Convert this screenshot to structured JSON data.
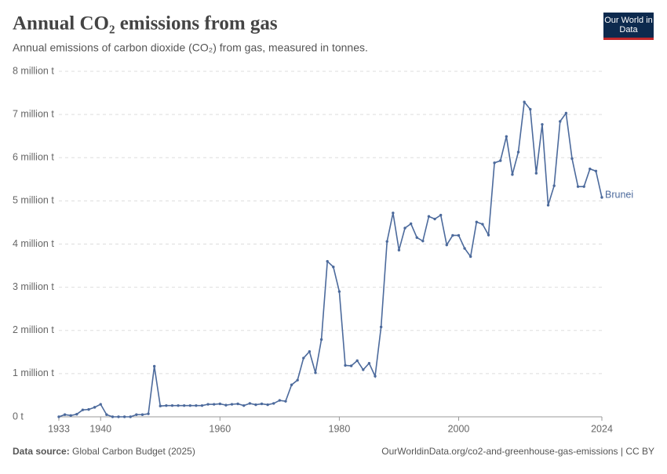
{
  "chart_data": {
    "type": "line",
    "title": "Annual CO₂ emissions from gas",
    "subtitle": "Annual emissions of carbon dioxide (CO₂) from gas, measured in tonnes.",
    "logo": "Our World in Data",
    "source_label": "Data source:",
    "source": "Global Carbon Budget (2025)",
    "footer_right": "OurWorldinData.org/co2-and-greenhouse-gas-emissions | CC BY",
    "x": [
      1933,
      1934,
      1935,
      1936,
      1937,
      1938,
      1939,
      1940,
      1941,
      1942,
      1943,
      1944,
      1945,
      1946,
      1947,
      1948,
      1949,
      1950,
      1951,
      1952,
      1953,
      1954,
      1955,
      1956,
      1957,
      1958,
      1959,
      1960,
      1961,
      1962,
      1963,
      1964,
      1965,
      1966,
      1967,
      1968,
      1969,
      1970,
      1971,
      1972,
      1973,
      1974,
      1975,
      1976,
      1977,
      1978,
      1979,
      1980,
      1981,
      1982,
      1983,
      1984,
      1985,
      1986,
      1987,
      1988,
      1989,
      1990,
      1991,
      1992,
      1993,
      1994,
      1995,
      1996,
      1997,
      1998,
      1999,
      2000,
      2001,
      2002,
      2003,
      2004,
      2005,
      2006,
      2007,
      2008,
      2009,
      2010,
      2011,
      2012,
      2013,
      2014,
      2015,
      2016,
      2017,
      2018,
      2019,
      2020,
      2021,
      2022,
      2023,
      2024
    ],
    "series": [
      {
        "name": "Brunei",
        "color": "#4c6a9c",
        "values": [
          0,
          50000,
          30000,
          60000,
          160000,
          170000,
          220000,
          290000,
          50000,
          0,
          0,
          0,
          0,
          50000,
          50000,
          70000,
          1170000,
          250000,
          260000,
          260000,
          260000,
          260000,
          260000,
          260000,
          260000,
          290000,
          290000,
          300000,
          270000,
          290000,
          300000,
          260000,
          310000,
          280000,
          300000,
          280000,
          310000,
          380000,
          360000,
          740000,
          850000,
          1360000,
          1510000,
          1020000,
          1790000,
          3600000,
          3470000,
          2900000,
          1190000,
          1180000,
          1300000,
          1090000,
          1240000,
          940000,
          2080000,
          4060000,
          4720000,
          3860000,
          4370000,
          4470000,
          4150000,
          4070000,
          4640000,
          4580000,
          4670000,
          3980000,
          4200000,
          4200000,
          3900000,
          3710000,
          4510000,
          4460000,
          4210000,
          5880000,
          5930000,
          6490000,
          5610000,
          6130000,
          7290000,
          7120000,
          5640000,
          6770000,
          4900000,
          5350000,
          6840000,
          7030000,
          5980000,
          5330000,
          5330000,
          5740000,
          5690000,
          5080000
        ]
      }
    ],
    "xlim": [
      1933,
      2024
    ],
    "xticks": [
      1933,
      1940,
      1960,
      1980,
      2000,
      2024
    ],
    "ylim": [
      0,
      8000000
    ],
    "yticks": [
      {
        "value": 0,
        "label": "0 t"
      },
      {
        "value": 1000000,
        "label": "1 million t"
      },
      {
        "value": 2000000,
        "label": "2 million t"
      },
      {
        "value": 3000000,
        "label": "3 million t"
      },
      {
        "value": 4000000,
        "label": "4 million t"
      },
      {
        "value": 5000000,
        "label": "5 million t"
      },
      {
        "value": 6000000,
        "label": "6 million t"
      },
      {
        "value": 7000000,
        "label": "7 million t"
      },
      {
        "value": 8000000,
        "label": "8 million t"
      }
    ],
    "grid": true
  }
}
